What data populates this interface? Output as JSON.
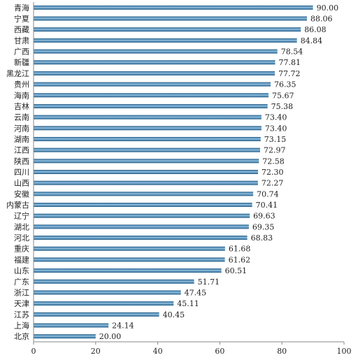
{
  "chart_data": {
    "type": "bar",
    "orientation": "horizontal",
    "categories": [
      "青海",
      "宁夏",
      "西藏",
      "甘肃",
      "广西",
      "新疆",
      "黑龙江",
      "贵州",
      "海南",
      "吉林",
      "云南",
      "河南",
      "湖南",
      "江西",
      "陕西",
      "四川",
      "山西",
      "安徽",
      "内蒙古",
      "辽宁",
      "湖北",
      "河北",
      "重庆",
      "福建",
      "山东",
      "广东",
      "浙江",
      "天津",
      "江苏",
      "上海",
      "北京"
    ],
    "values": [
      90.0,
      88.06,
      86.08,
      84.84,
      78.54,
      77.81,
      77.72,
      76.35,
      75.67,
      75.38,
      73.4,
      73.4,
      73.15,
      72.97,
      72.58,
      72.3,
      72.27,
      70.74,
      70.41,
      69.63,
      69.35,
      68.83,
      61.68,
      61.62,
      60.51,
      51.71,
      47.45,
      45.11,
      40.45,
      24.14,
      20.0
    ],
    "value_labels": [
      "90.00",
      "88.06",
      "86.08",
      "84.84",
      "78.54",
      "77.81",
      "77.72",
      "76.35",
      "75.67",
      "75.38",
      "73.40",
      "73.40",
      "73.15",
      "72.97",
      "72.58",
      "72.30",
      "72.27",
      "70.74",
      "70.41",
      "69.63",
      "69.35",
      "68.83",
      "61.68",
      "61.62",
      "60.51",
      "51.71",
      "47.45",
      "45.11",
      "40.45",
      "24.14",
      "20.00"
    ],
    "xlim": [
      0,
      100
    ],
    "xticks": [
      "0",
      "20",
      "40",
      "60",
      "80",
      "100"
    ],
    "xtick_values": [
      0,
      20,
      40,
      60,
      80,
      100
    ],
    "grid": false,
    "bar_color": "#2e6e9e",
    "bar_highlight": "#8fbfe0"
  }
}
